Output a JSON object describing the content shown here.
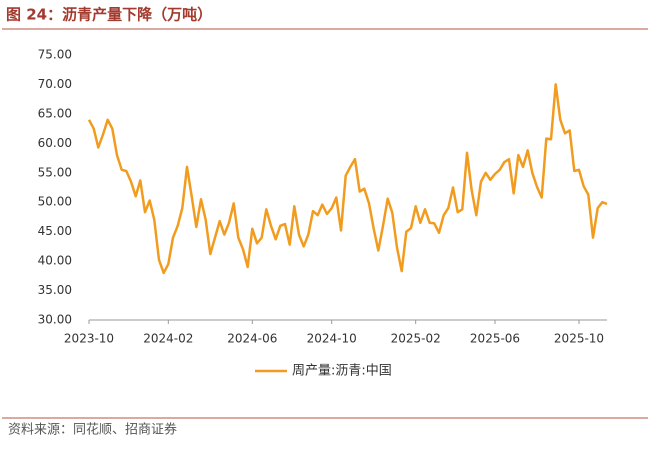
{
  "chart_data": {
    "type": "line",
    "title": "图 24：沥青产量下降（万吨）",
    "source": "资料来源：同花顺、招商证券",
    "categories": [
      "2023-10",
      null,
      null,
      null,
      null,
      null,
      null,
      null,
      null,
      null,
      null,
      null,
      null,
      null,
      null,
      null,
      null,
      "2024-02",
      null,
      null,
      null,
      null,
      null,
      null,
      null,
      null,
      null,
      null,
      null,
      null,
      null,
      null,
      null,
      null,
      null,
      "2024-06",
      null,
      null,
      null,
      null,
      null,
      null,
      null,
      null,
      null,
      null,
      null,
      null,
      null,
      null,
      null,
      null,
      "2024-10",
      null,
      null,
      null,
      null,
      null,
      null,
      null,
      null,
      null,
      null,
      null,
      null,
      null,
      null,
      null,
      null,
      null,
      "2025-02",
      null,
      null,
      null,
      null,
      null,
      null,
      null,
      null,
      null,
      null,
      null,
      null,
      null,
      null,
      null,
      null,
      "2025-06",
      null,
      null,
      null,
      null,
      null,
      null,
      null,
      null,
      null,
      null,
      null,
      null,
      null,
      null,
      null,
      null,
      null,
      "2025-10",
      null,
      null,
      null,
      null,
      null,
      null
    ],
    "series": [
      {
        "name": "周产量:沥青:中国",
        "color": "#f29c1f",
        "values": [
          64,
          62.5,
          59.3,
          61.5,
          64,
          62.5,
          58,
          55.5,
          55.3,
          53.5,
          51,
          53.7,
          48.3,
          50.3,
          47,
          40.2,
          38,
          39.5,
          44,
          46,
          49,
          56,
          51,
          45.8,
          50.5,
          47,
          41.2,
          44,
          46.8,
          44.5,
          46.5,
          49.8,
          44,
          42,
          39,
          45.5,
          43,
          44,
          48.8,
          46,
          43.7,
          46,
          46.3,
          42.8,
          49.3,
          44.5,
          42.5,
          44.5,
          48.5,
          47.8,
          49.6,
          48,
          49,
          50.8,
          45.2,
          54.5,
          56,
          57.3,
          51.8,
          52.3,
          49.8,
          45.5,
          41.8,
          46,
          50.6,
          48.2,
          42.3,
          38.3,
          45,
          45.6,
          49.3,
          46.5,
          48.8,
          46.5,
          46.4,
          44.8,
          47.8,
          49,
          52.5,
          48.3,
          48.8,
          58.4,
          52,
          47.8,
          53.5,
          55,
          53.8,
          54.8,
          55.5,
          56.8,
          57.3,
          51.5,
          58,
          56,
          58.8,
          55,
          52.6,
          50.8,
          60.8,
          60.7,
          70,
          64,
          61.7,
          62.2,
          55.3,
          55.5,
          52.7,
          51.3,
          44,
          49,
          50,
          49.7
        ]
      }
    ],
    "ylim": [
      30,
      75
    ],
    "yticks": [
      {
        "value": 30,
        "label": "30.00"
      },
      {
        "value": 35,
        "label": "35.00"
      },
      {
        "value": 40,
        "label": "40.00"
      },
      {
        "value": 45,
        "label": "45.00"
      },
      {
        "value": 50,
        "label": "50.00"
      },
      {
        "value": 55,
        "label": "55.00"
      },
      {
        "value": 60,
        "label": "60.00"
      },
      {
        "value": 65,
        "label": "65.00"
      },
      {
        "value": 70,
        "label": "70.00"
      },
      {
        "value": 75,
        "label": "75.00"
      }
    ],
    "grid": false
  }
}
